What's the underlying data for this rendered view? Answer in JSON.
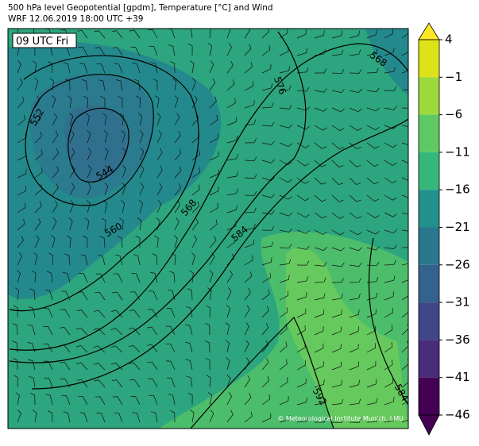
{
  "header": {
    "line1": "500 hPa level Geopotential [gpdm], Temperature [°C] and Wind",
    "line2": "WRF 12.06.2019 18:00 UTC +39"
  },
  "map": {
    "time_label": "09 UTC Fri",
    "contour_labels": [
      "552",
      "544",
      "560",
      "568",
      "576",
      "568",
      "584",
      "592",
      "584"
    ],
    "copyright": "© Meteorological Institute Munich, LMU"
  },
  "colorbar": {
    "ticks": [
      "4",
      "−1",
      "−6",
      "−11",
      "−16",
      "−21",
      "−26",
      "−31",
      "−36",
      "−41",
      "−46"
    ],
    "colors": [
      "#fde725",
      "#dde318",
      "#9bd93c",
      "#5ec962",
      "#35b779",
      "#21918c",
      "#2a788e",
      "#33638d",
      "#3f4788",
      "#472d7b",
      "#440154"
    ]
  }
}
